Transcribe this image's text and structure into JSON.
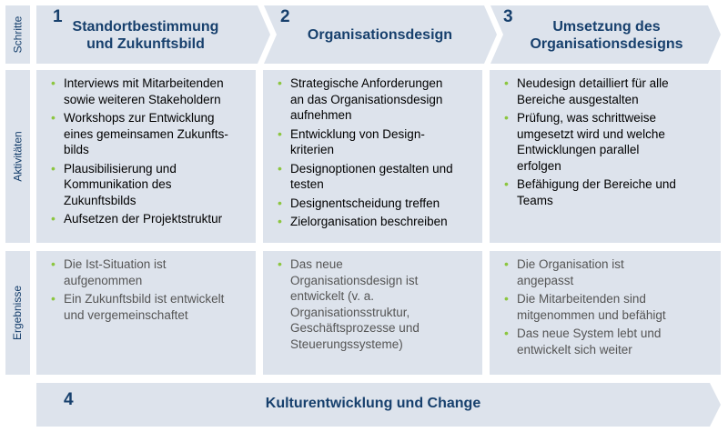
{
  "row_labels": {
    "steps": "Schritte",
    "activities": "Aktivitäten",
    "results": "Ergebnisse"
  },
  "steps": [
    {
      "number": "1",
      "title": "Standortbestimmung\nund Zukunftsbild"
    },
    {
      "number": "2",
      "title": "Organisationsdesign"
    },
    {
      "number": "3",
      "title": "Umsetzung des\nOrganisationsdesigns"
    }
  ],
  "activities": [
    [
      "Interviews mit Mitarbeitenden\nsowie weiteren Stakeholdern",
      "Workshops zur Entwicklung\neines gemeinsamen Zukunfts-\nbilds",
      "Plausibilisierung und\nKommunikation des\nZukunftsbilds",
      "Aufsetzen der Projektstruktur"
    ],
    [
      "Strategische Anforderungen\nan das Organisationsdesign\naufnehmen",
      "Entwicklung von Design-\nkriterien",
      "Designoptionen gestalten und\ntesten",
      "Designentscheidung treffen",
      "Zielorganisation beschreiben"
    ],
    [
      "Neudesign detailliert für alle\nBereiche ausgestalten",
      "Prüfung, was schrittweise\numgesetzt wird und welche\nEntwicklungen parallel\nerfolgen",
      "Befähigung der Bereiche und\nTeams"
    ]
  ],
  "results": [
    [
      "Die Ist-Situation ist\naufgenommen",
      "Ein Zukunftsbild ist entwickelt\nund vergemeinschaftet"
    ],
    [
      "Das neue\nOrganisationsdesign ist\nentwickelt (v. a.\nOrganisationsstruktur,\nGeschäftsprozesse und\nSteuerungssysteme)"
    ],
    [
      "Die Organisation ist\nangepasst",
      "Die Mitarbeitenden sind\nmitgenommen und befähigt",
      "Das neue System lebt und\nentwickelt sich weiter"
    ]
  ],
  "footer": {
    "number": "4",
    "title": "Kulturentwicklung und Change"
  },
  "colors": {
    "panel": "#dde3ec",
    "title": "#17406d",
    "bullet": "#8cc63f"
  }
}
